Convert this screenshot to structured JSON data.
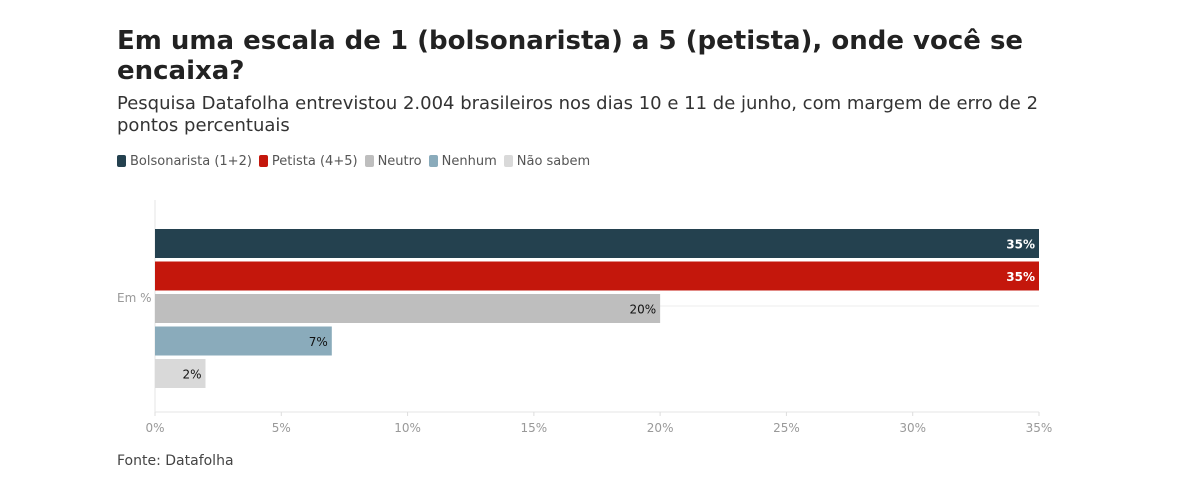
{
  "header": {
    "title": "Em uma escala de 1 (bolsonarista) a 5 (petista), onde você se encaixa?",
    "subtitle": "Pesquisa Datafolha entrevistou 2.004 brasileiros nos dias 10 e 11 de junho, com margem de erro de 2 pontos percentuais"
  },
  "legend": [
    {
      "label": "Bolsonarista (1+2)",
      "color": "#24414f"
    },
    {
      "label": "Petista (4+5)",
      "color": "#c4170c"
    },
    {
      "label": "Neutro",
      "color": "#bebebe"
    },
    {
      "label": "Nenhum",
      "color": "#8aabbb"
    },
    {
      "label": "Não sabem",
      "color": "#d9d9d9"
    }
  ],
  "chart_data": {
    "type": "bar",
    "orientation": "horizontal",
    "categories": [
      "Em %"
    ],
    "series": [
      {
        "name": "Bolsonarista (1+2)",
        "values": [
          35
        ],
        "label": "35%",
        "color": "#24414f",
        "label_color": "#ffffff"
      },
      {
        "name": "Petista (4+5)",
        "values": [
          35
        ],
        "label": "35%",
        "color": "#c4170c",
        "label_color": "#ffffff"
      },
      {
        "name": "Neutro",
        "values": [
          20
        ],
        "label": "20%",
        "color": "#bebebe",
        "label_color": "#111111"
      },
      {
        "name": "Nenhum",
        "values": [
          7
        ],
        "label": "7%",
        "color": "#8aabbb",
        "label_color": "#111111"
      },
      {
        "name": "Não sabem",
        "values": [
          2
        ],
        "label": "2%",
        "color": "#d9d9d9",
        "label_color": "#111111"
      }
    ],
    "xlim": [
      0,
      35
    ],
    "x_ticks": [
      0,
      5,
      10,
      15,
      20,
      25,
      30,
      35
    ],
    "x_tick_labels": [
      "0%",
      "5%",
      "10%",
      "15%",
      "20%",
      "25%",
      "30%",
      "35%"
    ],
    "grid": false,
    "legend_position": "top-left"
  },
  "footer": {
    "source": "Fonte: Datafolha"
  }
}
